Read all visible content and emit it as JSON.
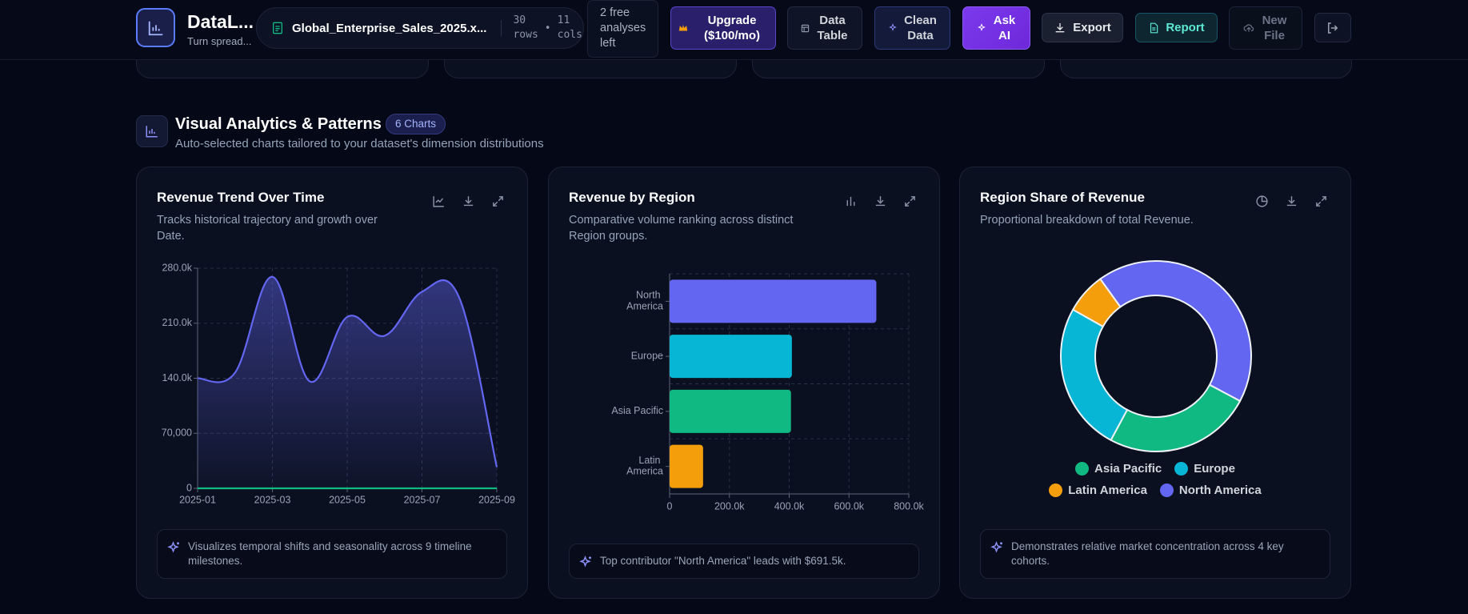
{
  "header": {
    "app_name": "DataL...",
    "tagline": "Turn spread...",
    "file_name": "Global_Enterprise_Sales_2025.x...",
    "rows": 30,
    "rows_label": "rows",
    "cols": 11,
    "cols_label": "cols",
    "free_analyses": "2 free analyses left",
    "upgrade": "Upgrade ($100/mo)",
    "data_table": "Data Table",
    "clean_data": "Clean Data",
    "ask_ai": "Ask AI",
    "export": "Export",
    "report": "Report",
    "new_file": "New File"
  },
  "section": {
    "title": "Visual Analytics & Patterns",
    "badge": "6 Charts",
    "subtitle": "Auto-selected charts tailored to your dataset's dimension distributions"
  },
  "chart_data": [
    {
      "type": "line",
      "title": "Revenue Trend Over Time",
      "subtitle": "Tracks historical trajectory and growth over Date.",
      "note": "Visualizes temporal shifts and seasonality across 9 timeline milestones.",
      "categories": [
        "2025-01",
        null,
        "2025-03",
        null,
        "2025-05",
        null,
        "2025-07",
        null,
        "2025-09"
      ],
      "series": [
        {
          "color": "#6366f1",
          "values": [
            140000,
            147000,
            269000,
            136000,
            218000,
            194000,
            250000,
            242000,
            27000
          ]
        },
        {
          "color": "#10b981",
          "values": [
            0,
            0,
            0,
            0,
            0,
            0,
            0,
            0,
            0
          ]
        }
      ],
      "ylim": [
        0,
        280000
      ],
      "yticks": [
        0,
        {
          "value": 70000,
          "label": "70,000"
        },
        {
          "value": 140000,
          "label": "140.0k"
        },
        {
          "value": 210000,
          "label": "210.0k"
        },
        {
          "value": 280000,
          "label": "280.0k"
        }
      ],
      "grid": true
    },
    {
      "type": "hbar",
      "title": "Revenue by Region",
      "subtitle": "Comparative volume ranking across distinct Region groups.",
      "note": "Top contributor \"North America\" leads with $691.5k.",
      "categories": [
        "North America",
        "Europe",
        "Asia Pacific",
        "Latin America"
      ],
      "values": [
        691500,
        409000,
        406000,
        112000
      ],
      "colors": [
        "#6366f1",
        "#06b6d4",
        "#10b981",
        "#f59e0b"
      ],
      "xlim": [
        0,
        800000
      ],
      "xticks": [
        0,
        {
          "value": 200000,
          "label": "200.0k"
        },
        {
          "value": 400000,
          "label": "400.0k"
        },
        {
          "value": 600000,
          "label": "600.0k"
        },
        {
          "value": 800000,
          "label": "800.0k"
        }
      ],
      "grid": true
    },
    {
      "type": "donut",
      "title": "Region Share of Revenue",
      "subtitle": "Proportional breakdown of total Revenue.",
      "note": "Demonstrates relative market concentration across 4 key cohorts.",
      "categories": [
        "Asia Pacific",
        "Europe",
        "Latin America",
        "North America"
      ],
      "values": [
        406000,
        409000,
        112000,
        691500
      ],
      "colors": [
        "#10b981",
        "#06b6d4",
        "#f59e0b",
        "#6366f1"
      ]
    }
  ]
}
